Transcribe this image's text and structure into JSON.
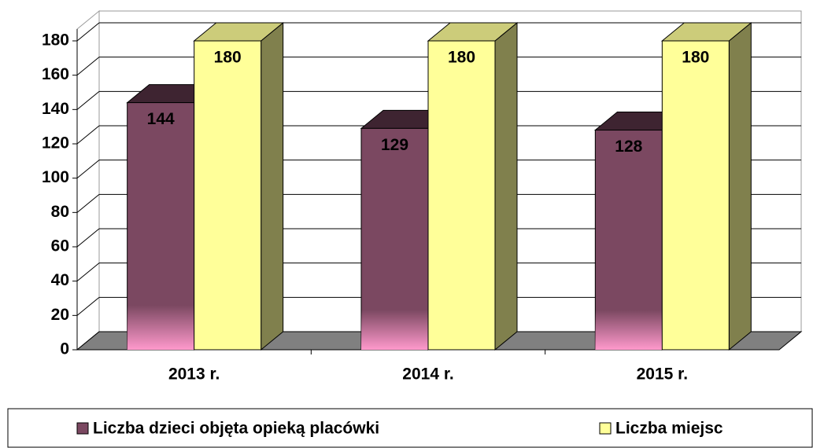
{
  "chart_data": {
    "type": "bar",
    "categories": [
      "2013 r.",
      "2014 r.",
      "2015 r."
    ],
    "series": [
      {
        "name": "Liczba dzieci objęta opieką placówki",
        "color": "#7b4861",
        "values": [
          144,
          129,
          128
        ]
      },
      {
        "name": "Liczba miejsc",
        "color": "#ffff99",
        "values": [
          180,
          180,
          180
        ]
      }
    ],
    "ylim": [
      0,
      180
    ],
    "yticks": [
      0,
      20,
      40,
      60,
      80,
      100,
      120,
      140,
      160,
      180
    ],
    "grid": true,
    "legend": "bottom"
  }
}
